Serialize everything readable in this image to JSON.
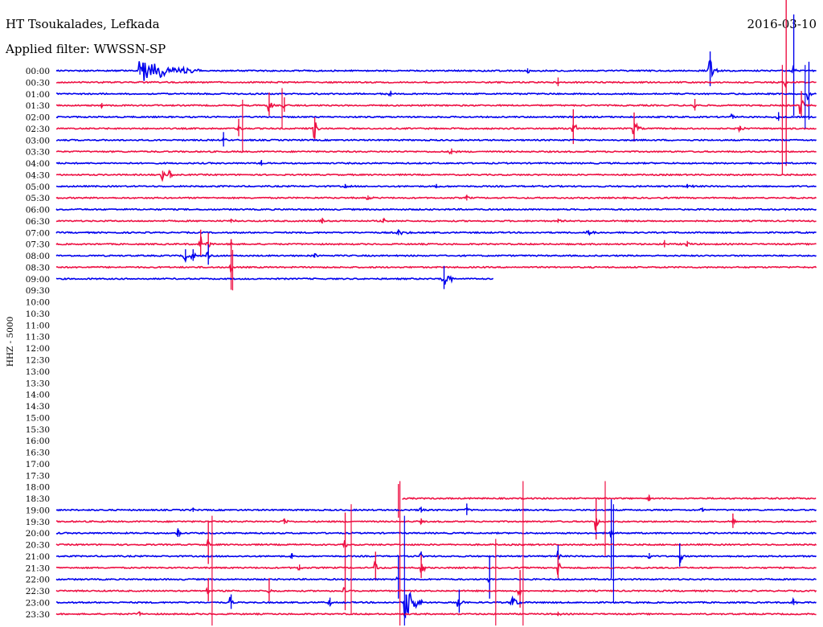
{
  "header": {
    "station": "HT Tsoukalades, Lefkada",
    "date": "2016-03-10",
    "filter": "Applied filter: WWSSN-SP"
  },
  "chart_data": {
    "type": "helicorder",
    "title": "HT Tsoukalades, Lefkada",
    "ylabel": "HHZ - 5000",
    "date": "2016-03-10",
    "filter": "WWSSN-SP",
    "colors": [
      "#0000ee",
      "#ee1144"
    ],
    "tick_labels": [
      "00:00",
      "00:30",
      "01:00",
      "01:30",
      "02:00",
      "02:30",
      "03:00",
      "03:30",
      "04:00",
      "04:30",
      "05:00",
      "05:30",
      "06:00",
      "06:30",
      "07:00",
      "07:30",
      "08:00",
      "08:30",
      "09:00",
      "09:30",
      "10:00",
      "10:30",
      "11:00",
      "11:30",
      "12:00",
      "12:30",
      "13:00",
      "13:30",
      "14:00",
      "14:30",
      "15:00",
      "15:30",
      "16:00",
      "16:30",
      "17:00",
      "17:30",
      "18:00",
      "18:30",
      "19:00",
      "19:30",
      "20:00",
      "20:30",
      "21:00",
      "21:30",
      "22:00",
      "22:30",
      "23:00",
      "23:30"
    ],
    "x_range_minutes": [
      0,
      30
    ],
    "traces": [
      {
        "row": 0,
        "start": 0,
        "end": 1,
        "events": [
          [
            0.11,
            16,
            6,
            0.08,
            1
          ],
          [
            0.62,
            5,
            3,
            0.004,
            1
          ],
          [
            0.86,
            14,
            24,
            0.01,
            1
          ],
          [
            0.97,
            6,
            70,
            0.003,
            1
          ]
        ]
      },
      {
        "row": 1,
        "start": 0,
        "end": 1,
        "events": [
          [
            0.66,
            4,
            6,
            0.005,
            1
          ],
          [
            0.96,
            10,
            130,
            0.004,
            0.3
          ]
        ]
      },
      {
        "row": 2,
        "start": 0,
        "end": 1,
        "events": [
          [
            0.44,
            3,
            4,
            0.002,
            1
          ],
          [
            0.99,
            8,
            40,
            0.003,
            1
          ]
        ]
      },
      {
        "row": 3,
        "start": 0,
        "end": 1,
        "events": [
          [
            0.06,
            3,
            3,
            0.003,
            1
          ],
          [
            0.28,
            8,
            16,
            0.008,
            1
          ],
          [
            0.3,
            4,
            10,
            0.003,
            1
          ],
          [
            0.84,
            5,
            8,
            0.005,
            1
          ],
          [
            0.98,
            12,
            18,
            0.004,
            1
          ]
        ]
      },
      {
        "row": 4,
        "start": 0,
        "end": 1,
        "events": [
          [
            0.89,
            3,
            3,
            0.003,
            1
          ],
          [
            0.95,
            4,
            6,
            0.003,
            1
          ]
        ]
      },
      {
        "row": 5,
        "start": 0,
        "end": 1,
        "events": [
          [
            0.24,
            6,
            12,
            0.006,
            1
          ],
          [
            0.34,
            16,
            14,
            0.006,
            1
          ],
          [
            0.68,
            14,
            24,
            0.006,
            1
          ],
          [
            0.76,
            14,
            20,
            0.008,
            1
          ],
          [
            0.9,
            3,
            3,
            0.01,
            1
          ]
        ]
      },
      {
        "row": 6,
        "start": 0,
        "end": 1,
        "events": [
          [
            0.22,
            4,
            10,
            0.004,
            1
          ]
        ]
      },
      {
        "row": 7,
        "start": 0,
        "end": 1,
        "events": [
          [
            0.52,
            3,
            4,
            0.006,
            1
          ]
        ]
      },
      {
        "row": 8,
        "start": 0,
        "end": 1,
        "events": [
          [
            0.27,
            2,
            4,
            0.003,
            1
          ]
        ]
      },
      {
        "row": 9,
        "start": 0,
        "end": 1,
        "events": [
          [
            0.14,
            6,
            5,
            0.005,
            1
          ],
          [
            0.15,
            5,
            5,
            0.003,
            1
          ]
        ]
      },
      {
        "row": 10,
        "start": 0,
        "end": 1,
        "events": [
          [
            0.38,
            2,
            3,
            0.008,
            1
          ],
          [
            0.5,
            2,
            3,
            0.01,
            1
          ],
          [
            0.83,
            2,
            3,
            0.01,
            1
          ]
        ]
      },
      {
        "row": 11,
        "start": 0,
        "end": 1,
        "events": [
          [
            0.41,
            3,
            3,
            0.01,
            1
          ],
          [
            0.54,
            3,
            4,
            0.004,
            1
          ]
        ]
      },
      {
        "row": 12,
        "start": 0,
        "end": 1,
        "events": []
      },
      {
        "row": 13,
        "start": 0,
        "end": 1,
        "events": [
          [
            0.23,
            3,
            3,
            0.008,
            1
          ],
          [
            0.35,
            3,
            4,
            0.004,
            1
          ],
          [
            0.43,
            3,
            3,
            0.006,
            1
          ],
          [
            0.66,
            3,
            3,
            0.004,
            1
          ]
        ]
      },
      {
        "row": 14,
        "start": 0,
        "end": 1,
        "events": [
          [
            0.45,
            3,
            4,
            0.02,
            1
          ],
          [
            0.7,
            3,
            3,
            0.02,
            1
          ]
        ]
      },
      {
        "row": 15,
        "start": 0,
        "end": 1,
        "events": [
          [
            0.19,
            12,
            18,
            0.003,
            1
          ],
          [
            0.2,
            8,
            14,
            0.003,
            1
          ],
          [
            0.23,
            6,
            6,
            0.004,
            1
          ],
          [
            0.8,
            3,
            5,
            0.003,
            1
          ],
          [
            0.83,
            3,
            4,
            0.006,
            1
          ]
        ]
      },
      {
        "row": 16,
        "start": 0,
        "end": 1,
        "events": [
          [
            0.17,
            6,
            8,
            0.004,
            1
          ],
          [
            0.18,
            8,
            8,
            0.003,
            1
          ],
          [
            0.2,
            6,
            14,
            0.003,
            1
          ],
          [
            0.34,
            3,
            3,
            0.006,
            1
          ]
        ]
      },
      {
        "row": 17,
        "start": 0,
        "end": 1,
        "events": [
          [
            0.23,
            8,
            35,
            0.002,
            1
          ]
        ]
      },
      {
        "row": 18,
        "start": 0,
        "end": 0.575,
        "events": [
          [
            0.51,
            14,
            16,
            0.012,
            1
          ]
        ]
      },
      {
        "row": 37,
        "start": 0.455,
        "end": 1,
        "events": [
          [
            0.45,
            8,
            30,
            0.002,
            -1
          ],
          [
            0.78,
            3,
            4,
            0.004,
            1
          ]
        ]
      },
      {
        "row": 38,
        "start": 0,
        "end": 1,
        "events": [
          [
            0.18,
            3,
            3,
            0.006,
            1
          ],
          [
            0.48,
            3,
            4,
            0.004,
            1
          ],
          [
            0.54,
            5,
            8,
            0.004,
            1
          ],
          [
            0.85,
            3,
            3,
            0.004,
            1
          ]
        ]
      },
      {
        "row": 39,
        "start": 0,
        "end": 1,
        "events": [
          [
            0.3,
            4,
            4,
            0.008,
            1
          ],
          [
            0.48,
            3,
            4,
            0.004,
            1
          ],
          [
            0.71,
            18,
            28,
            0.004,
            1
          ],
          [
            0.89,
            6,
            10,
            0.005,
            1
          ]
        ]
      },
      {
        "row": 40,
        "start": 0,
        "end": 1,
        "events": [
          [
            0.16,
            6,
            6,
            0.008,
            1
          ],
          [
            0.73,
            6,
            70,
            0.002,
            -1
          ]
        ]
      },
      {
        "row": 41,
        "start": 0,
        "end": 1,
        "events": [
          [
            0.2,
            5,
            30,
            0.002,
            1
          ],
          [
            0.38,
            6,
            40,
            0.002,
            1
          ]
        ]
      },
      {
        "row": 42,
        "start": 0,
        "end": 1,
        "events": [
          [
            0.31,
            3,
            4,
            0.004,
            1
          ],
          [
            0.48,
            4,
            6,
            0.003,
            1
          ],
          [
            0.66,
            8,
            14,
            0.004,
            1
          ],
          [
            0.78,
            4,
            4,
            0.004,
            1
          ],
          [
            0.82,
            12,
            16,
            0.004,
            1
          ]
        ]
      },
      {
        "row": 43,
        "start": 0,
        "end": 1,
        "events": [
          [
            0.32,
            3,
            4,
            0.004,
            1
          ],
          [
            0.42,
            8,
            20,
            0.004,
            1
          ],
          [
            0.48,
            10,
            16,
            0.006,
            1
          ],
          [
            0.66,
            12,
            16,
            0.004,
            1
          ]
        ]
      },
      {
        "row": 44,
        "start": 0,
        "end": 1,
        "events": [
          [
            0.45,
            6,
            30,
            0.002,
            1
          ],
          [
            0.57,
            6,
            30,
            0.002,
            1
          ]
        ]
      },
      {
        "row": 45,
        "start": 0,
        "end": 1,
        "events": [
          [
            0.2,
            6,
            16,
            0.003,
            1
          ],
          [
            0.28,
            6,
            16,
            0.003,
            1
          ],
          [
            0.38,
            8,
            30,
            0.002,
            1
          ],
          [
            0.61,
            8,
            26,
            0.002,
            1
          ]
        ]
      },
      {
        "row": 46,
        "start": 0,
        "end": 1,
        "events": [
          [
            0.23,
            8,
            10,
            0.004,
            1
          ],
          [
            0.36,
            5,
            6,
            0.004,
            1
          ],
          [
            0.46,
            24,
            10,
            0.02,
            1
          ],
          [
            0.53,
            12,
            16,
            0.006,
            1
          ],
          [
            0.6,
            6,
            4,
            0.015,
            1
          ],
          [
            0.97,
            4,
            4,
            0.004,
            1
          ]
        ]
      },
      {
        "row": 47,
        "start": 0,
        "end": 1,
        "events": [
          [
            0.11,
            3,
            3,
            0.003,
            1
          ],
          [
            0.66,
            3,
            3,
            0.004,
            1
          ]
        ]
      }
    ],
    "spikes": [
      {
        "x": 0.955,
        "row_from": 0,
        "row_to": 9,
        "color": "#ee1144"
      },
      {
        "x": 0.985,
        "row_from": 0,
        "row_to": 5,
        "color": "#0000ee"
      },
      {
        "x": 0.245,
        "row_from": 3,
        "row_to": 7,
        "color": "#ee1144"
      },
      {
        "x": 0.297,
        "row_from": 2,
        "row_to": 5,
        "color": "#ee1144"
      },
      {
        "x": 0.232,
        "row_from": 16,
        "row_to": 19,
        "color": "#ee1144"
      },
      {
        "x": 0.452,
        "row_from": 36,
        "row_to": 48,
        "color": "#ee1144"
      },
      {
        "x": 0.614,
        "row_from": 36,
        "row_to": 48,
        "color": "#ee1144"
      },
      {
        "x": 0.722,
        "row_from": 36,
        "row_to": 42,
        "color": "#ee1144"
      },
      {
        "x": 0.733,
        "row_from": 38,
        "row_to": 46,
        "color": "#0000ee"
      },
      {
        "x": 0.205,
        "row_from": 39,
        "row_to": 48,
        "color": "#ee1144"
      },
      {
        "x": 0.388,
        "row_from": 38,
        "row_to": 47,
        "color": "#ee1144"
      },
      {
        "x": 0.578,
        "row_from": 41,
        "row_to": 48,
        "color": "#ee1144"
      },
      {
        "x": 0.458,
        "row_from": 39,
        "row_to": 48,
        "color": "#0000ee"
      }
    ]
  }
}
